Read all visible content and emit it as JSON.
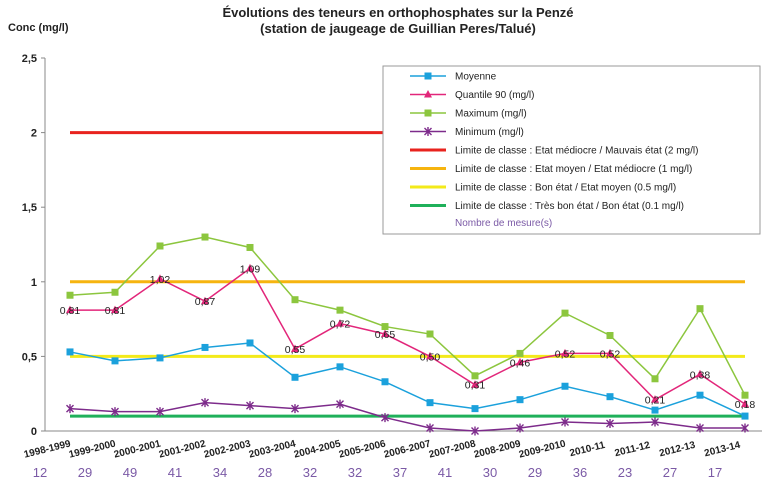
{
  "chart_data": {
    "type": "line",
    "title": "Évolutions des teneurs en orthophosphates sur la Penzé",
    "subtitle": "(station de jaugeage de Guillian Peres/Talué)",
    "ylabel": "Conc (mg/l)",
    "xlabel": "",
    "ylim": [
      0,
      2.5
    ],
    "yticks": [
      "0",
      "0,5",
      "1",
      "1,5",
      "2",
      "2,5"
    ],
    "grid": false,
    "legend_position": "top-right",
    "categories": [
      "1998-1999",
      "1999-2000",
      "2000-2001",
      "2001-2002",
      "2002-2003",
      "2003-2004",
      "2004-2005",
      "2005-2006",
      "2006-2007",
      "2007-2008",
      "2008-2009",
      "2009-2010",
      "2010-11",
      "2011-12",
      "2012-13",
      "2013-14"
    ],
    "counts_label": "Nombre de mesure(s)",
    "counts": [
      "12",
      "29",
      "49",
      "41",
      "34",
      "28",
      "32",
      "32",
      "37",
      "41",
      "30",
      "29",
      "36",
      "23",
      "27",
      "17"
    ],
    "series": [
      {
        "name": "Moyenne",
        "color": "#1ba1dc",
        "marker": "square",
        "values": [
          0.53,
          0.47,
          0.49,
          0.56,
          0.59,
          0.36,
          0.43,
          0.33,
          0.19,
          0.15,
          0.21,
          0.3,
          0.23,
          0.14,
          0.24,
          0.1
        ]
      },
      {
        "name": "Quantile 90 (mg/l)",
        "color": "#e2267a",
        "marker": "triangle",
        "values": [
          0.81,
          0.81,
          1.02,
          0.87,
          1.09,
          0.55,
          0.72,
          0.65,
          0.5,
          0.31,
          0.46,
          0.52,
          0.52,
          0.21,
          0.38,
          0.18
        ],
        "labels": [
          "0,81",
          "0,81",
          "1,02",
          "0,87",
          "1,09",
          "0,55",
          "0,72",
          "0,65",
          "0,50",
          "0,31",
          "0,46",
          "0,52",
          "0,52",
          "0,21",
          "0,38",
          "0,18"
        ]
      },
      {
        "name": "Maximum (mg/l)",
        "color": "#8cc63e",
        "marker": "square",
        "values": [
          0.91,
          0.93,
          1.24,
          1.3,
          1.23,
          0.88,
          0.81,
          0.7,
          0.65,
          0.37,
          0.52,
          0.79,
          0.64,
          0.35,
          0.82,
          0.24
        ]
      },
      {
        "name": "Minimum (mg/l)",
        "color": "#7d2b8b",
        "marker": "star",
        "values": [
          0.15,
          0.13,
          0.13,
          0.19,
          0.17,
          0.15,
          0.18,
          0.09,
          0.02,
          0.0,
          0.02,
          0.06,
          0.05,
          0.06,
          0.02,
          0.02
        ]
      }
    ],
    "thresholds": [
      {
        "name": "Limite de classe : Etat médiocre / Mauvais état (2 mg/l)",
        "value": 2.0,
        "color": "#e8231e"
      },
      {
        "name": "Limite de classe : Etat moyen / Etat médiocre (1 mg/l)",
        "value": 1.0,
        "color": "#f6b40f"
      },
      {
        "name": "Limite de classe : Bon état / Etat moyen (0.5 mg/l)",
        "value": 0.5,
        "color": "#f3ea1a"
      },
      {
        "name": "Limite de classe : Très bon état / Bon état  (0.1 mg/l)",
        "value": 0.1,
        "color": "#1fb05a"
      }
    ]
  }
}
